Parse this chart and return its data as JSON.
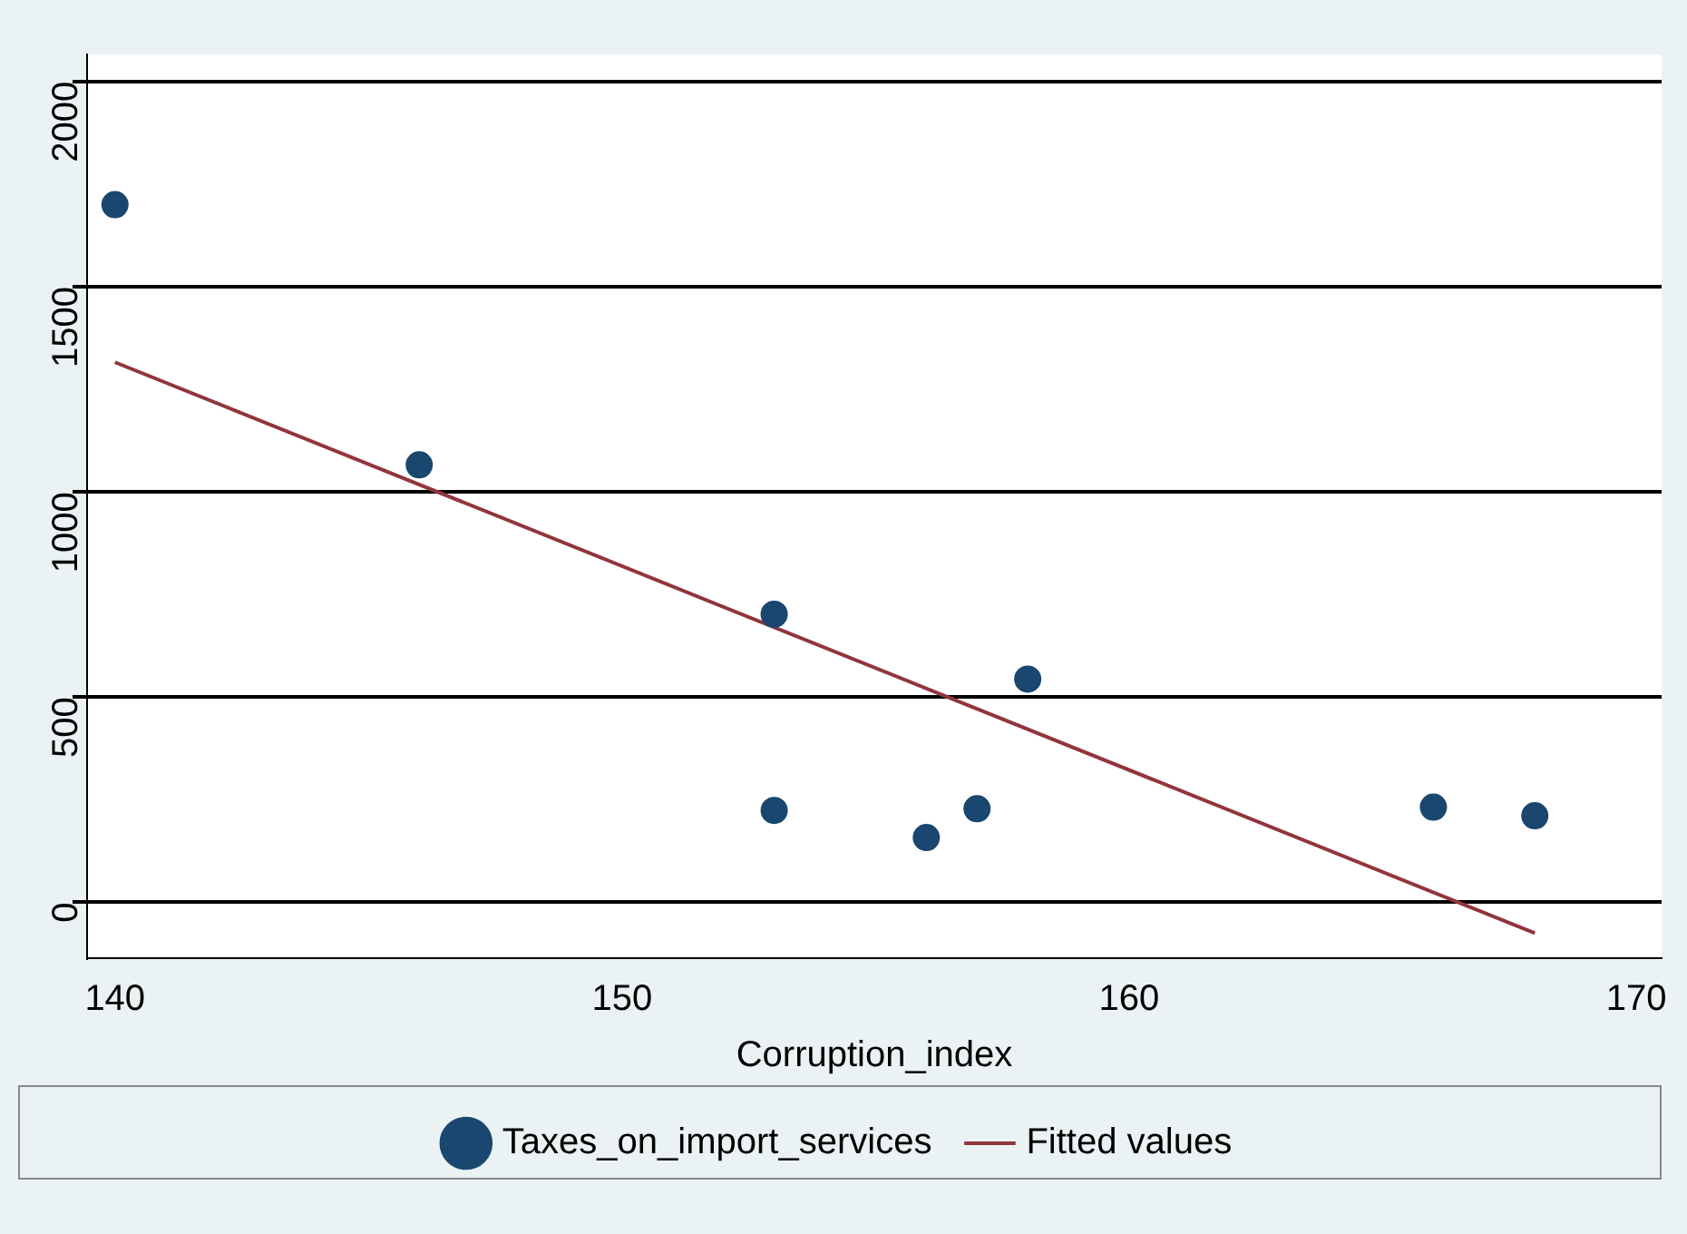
{
  "chart_data": {
    "type": "scatter",
    "xlabel": "Corruption_index",
    "xlim": [
      139.45,
      170.5
    ],
    "xticks": [
      140,
      150,
      160,
      170
    ],
    "ylim": [
      -136,
      2066
    ],
    "yticks": [
      0,
      500,
      1000,
      1500,
      2000
    ],
    "grid": "y",
    "legend": "bottom",
    "marker": "circle",
    "series": [
      {
        "name": "Taxes_on_import_services",
        "color": "#1a476f",
        "x": [
          140,
          146,
          153,
          153,
          156,
          157,
          158,
          166,
          168
        ],
        "values": [
          1700,
          1066,
          702,
          224,
          158,
          228,
          544,
          232,
          211
        ]
      },
      {
        "name": "Fitted values",
        "type": "line",
        "color": "#90353b",
        "x": [
          140,
          168
        ],
        "values": [
          1316,
          -75
        ],
        "marker": "none",
        "line_style": "solid"
      }
    ]
  }
}
